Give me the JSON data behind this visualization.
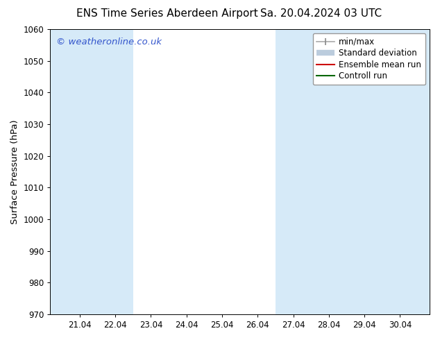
{
  "title": "ENS Time Series Aberdeen Airport",
  "title2": "Sa. 20.04.2024 03 UTC",
  "ylabel": "Surface Pressure (hPa)",
  "ylim": [
    970,
    1060
  ],
  "yticks": [
    970,
    980,
    990,
    1000,
    1010,
    1020,
    1030,
    1040,
    1050,
    1060
  ],
  "xlim_start": 20.17,
  "xlim_end": 30.83,
  "xtick_labels": [
    "21.04",
    "22.04",
    "23.04",
    "24.04",
    "25.04",
    "26.04",
    "27.04",
    "28.04",
    "29.04",
    "30.04"
  ],
  "xtick_positions": [
    21.0,
    22.0,
    23.0,
    24.0,
    25.0,
    26.0,
    27.0,
    28.0,
    29.0,
    30.0
  ],
  "watermark": "© weatheronline.co.uk",
  "watermark_color": "#3355cc",
  "bg_color": "#ffffff",
  "plot_bg_color": "#ffffff",
  "shaded_bands": [
    {
      "x_start": 20.17,
      "x_end": 21.5,
      "color": "#d6eaf8"
    },
    {
      "x_start": 21.5,
      "x_end": 22.5,
      "color": "#d6eaf8"
    },
    {
      "x_start": 26.5,
      "x_end": 27.5,
      "color": "#d6eaf8"
    },
    {
      "x_start": 27.5,
      "x_end": 28.5,
      "color": "#d6eaf8"
    },
    {
      "x_start": 28.5,
      "x_end": 29.5,
      "color": "#d6eaf8"
    },
    {
      "x_start": 29.5,
      "x_end": 30.83,
      "color": "#d6eaf8"
    }
  ],
  "title_fontsize": 11,
  "tick_fontsize": 8.5,
  "ylabel_fontsize": 9.5,
  "watermark_fontsize": 9.5,
  "legend_fontsize": 8.5
}
